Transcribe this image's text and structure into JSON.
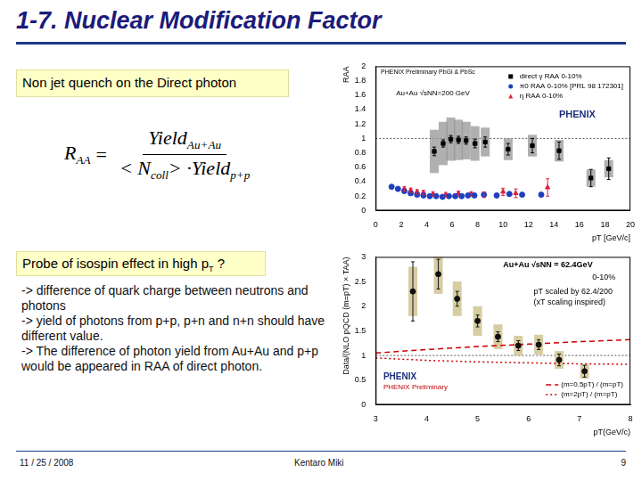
{
  "slide": {
    "title": "1-7. Nuclear Modification Factor",
    "box1": "Non jet quench on the Direct photon",
    "formula": {
      "lhs": "R",
      "lhs_sub": "AA",
      "eq": "=",
      "num": "Yield",
      "num_sub": "Au+Au",
      "den_a": "< N",
      "den_a_sub": "coll",
      "den_b": "> ·Yield",
      "den_b_sub": "p+p"
    },
    "box2": "Probe of isospin effect in high p",
    "box2_sub": "T",
    "box2_end": " ?",
    "text": [
      "-> difference of quark charge between neutrons and photons",
      "-> yield of photons from p+p, p+n and n+n should have different value.",
      "-> The difference of photon yield from Au+Au and p+p would be appeared in RAA of direct photon."
    ],
    "footer": {
      "date": "11 / 25 / 2008",
      "author": "Kentaro Miki",
      "page": "9"
    }
  },
  "chart_data": [
    {
      "type": "scatter",
      "x_label": "pT [GeV/c]",
      "y_label": "RAA",
      "xlim": [
        0,
        20
      ],
      "xticks": [
        0,
        2,
        4,
        6,
        8,
        10,
        12,
        14,
        16,
        18,
        20
      ],
      "ylim": [
        0,
        2
      ],
      "yticks": [
        0,
        0.2,
        0.4,
        0.6,
        0.8,
        1,
        1.2,
        1.4,
        1.6,
        1.8,
        2
      ],
      "grid": false,
      "legend": "top-right",
      "reference_line": 1,
      "annotations": [
        "PHENIX Preliminary PbGl & PbSc",
        "Au+Au √sNN=200 GeV",
        "PHENIX"
      ],
      "series": [
        {
          "name": "direct γ RAA 0-10%",
          "color": "#000000",
          "marker": "square",
          "x": [
            4.6,
            5.3,
            5.9,
            6.5,
            7.1,
            7.8,
            8.6,
            10.4,
            12.3,
            14.4,
            16.9,
            18.3
          ],
          "values": [
            0.82,
            0.93,
            0.99,
            0.98,
            0.97,
            0.93,
            0.95,
            0.85,
            0.9,
            0.83,
            0.45,
            0.58
          ],
          "errors": [
            0.06,
            0.05,
            0.05,
            0.05,
            0.05,
            0.06,
            0.07,
            0.08,
            0.1,
            0.12,
            0.12,
            0.15
          ],
          "sys_errors": [
            0.3,
            0.3,
            0.3,
            0.28,
            0.26,
            0.24,
            0.2,
            0.15,
            0.15,
            0.15,
            0.12,
            0.12
          ]
        },
        {
          "name": "π0 RAA 0-10% [PRL 98 172301]",
          "color": "#1f3fbf",
          "marker": "circle",
          "x": [
            1.25,
            1.75,
            2.25,
            2.75,
            3.25,
            3.75,
            4.25,
            4.75,
            5.25,
            5.75,
            6.25,
            6.75,
            7.25,
            7.75,
            8.5,
            9.5,
            10.5,
            11.5,
            13
          ],
          "values": [
            0.33,
            0.3,
            0.27,
            0.24,
            0.22,
            0.21,
            0.2,
            0.2,
            0.19,
            0.2,
            0.2,
            0.2,
            0.21,
            0.21,
            0.22,
            0.21,
            0.23,
            0.22,
            0.22
          ]
        },
        {
          "name": "η RAA 0-10%",
          "color": "#e0203a",
          "marker": "triangle",
          "x": [
            2.25,
            2.75,
            3.25,
            3.75,
            4.5,
            5.5,
            6.5,
            7.5,
            8.5,
            10,
            11,
            13.5
          ],
          "values": [
            0.3,
            0.28,
            0.26,
            0.25,
            0.23,
            0.22,
            0.24,
            0.23,
            0.22,
            0.26,
            0.24,
            0.32
          ],
          "errors": [
            0.03,
            0.03,
            0.03,
            0.03,
            0.03,
            0.03,
            0.03,
            0.03,
            0.04,
            0.05,
            0.06,
            0.12
          ]
        }
      ]
    },
    {
      "type": "scatter",
      "x_label": "pT(GeV/c)",
      "y_label": "Data/(NLO pQCD (m=pT) × TAA)",
      "xlim": [
        3,
        8
      ],
      "xticks": [
        3,
        4,
        5,
        6,
        7,
        8
      ],
      "ylim": [
        0,
        3
      ],
      "yticks": [
        0,
        0.5,
        1,
        1.5,
        2,
        2.5,
        3
      ],
      "grid": false,
      "legend": "bottom-right",
      "reference_line": 1,
      "annotations": [
        "Au+Au √sNN = 62.4GeV",
        "0-10%",
        "pT scaled by 62.4/200",
        "(xT scaling inspired)",
        "PHENIX",
        "PHENIX Preliminary"
      ],
      "series": [
        {
          "color": "#111111",
          "marker": "circle",
          "x": [
            3.73,
            4.23,
            4.6,
            5.0,
            5.4,
            5.8,
            6.2,
            6.6,
            7.1
          ],
          "values": [
            2.3,
            2.65,
            2.15,
            1.7,
            1.38,
            1.2,
            1.22,
            0.91,
            0.68
          ],
          "errors": [
            0.6,
            0.3,
            0.15,
            0.12,
            0.1,
            0.1,
            0.1,
            0.12,
            0.12
          ],
          "sys_errors": [
            0.5,
            0.4,
            0.35,
            0.3,
            0.25,
            0.2,
            0.2,
            0.18,
            0.15
          ]
        },
        {
          "name": "(m=0.5pT) / (m=pT)",
          "color": "#cc0000",
          "marker": "none",
          "line_style": "dashed",
          "x": [
            3,
            4,
            5,
            6,
            7,
            8
          ],
          "values": [
            1.05,
            1.12,
            1.18,
            1.23,
            1.28,
            1.32
          ]
        },
        {
          "name": "(m=2pT) / (m=pT)",
          "color": "#cc0000",
          "marker": "none",
          "line_style": "dotted",
          "x": [
            3,
            4,
            5,
            6,
            7,
            8
          ],
          "values": [
            0.95,
            0.9,
            0.87,
            0.85,
            0.83,
            0.82
          ]
        }
      ]
    }
  ]
}
